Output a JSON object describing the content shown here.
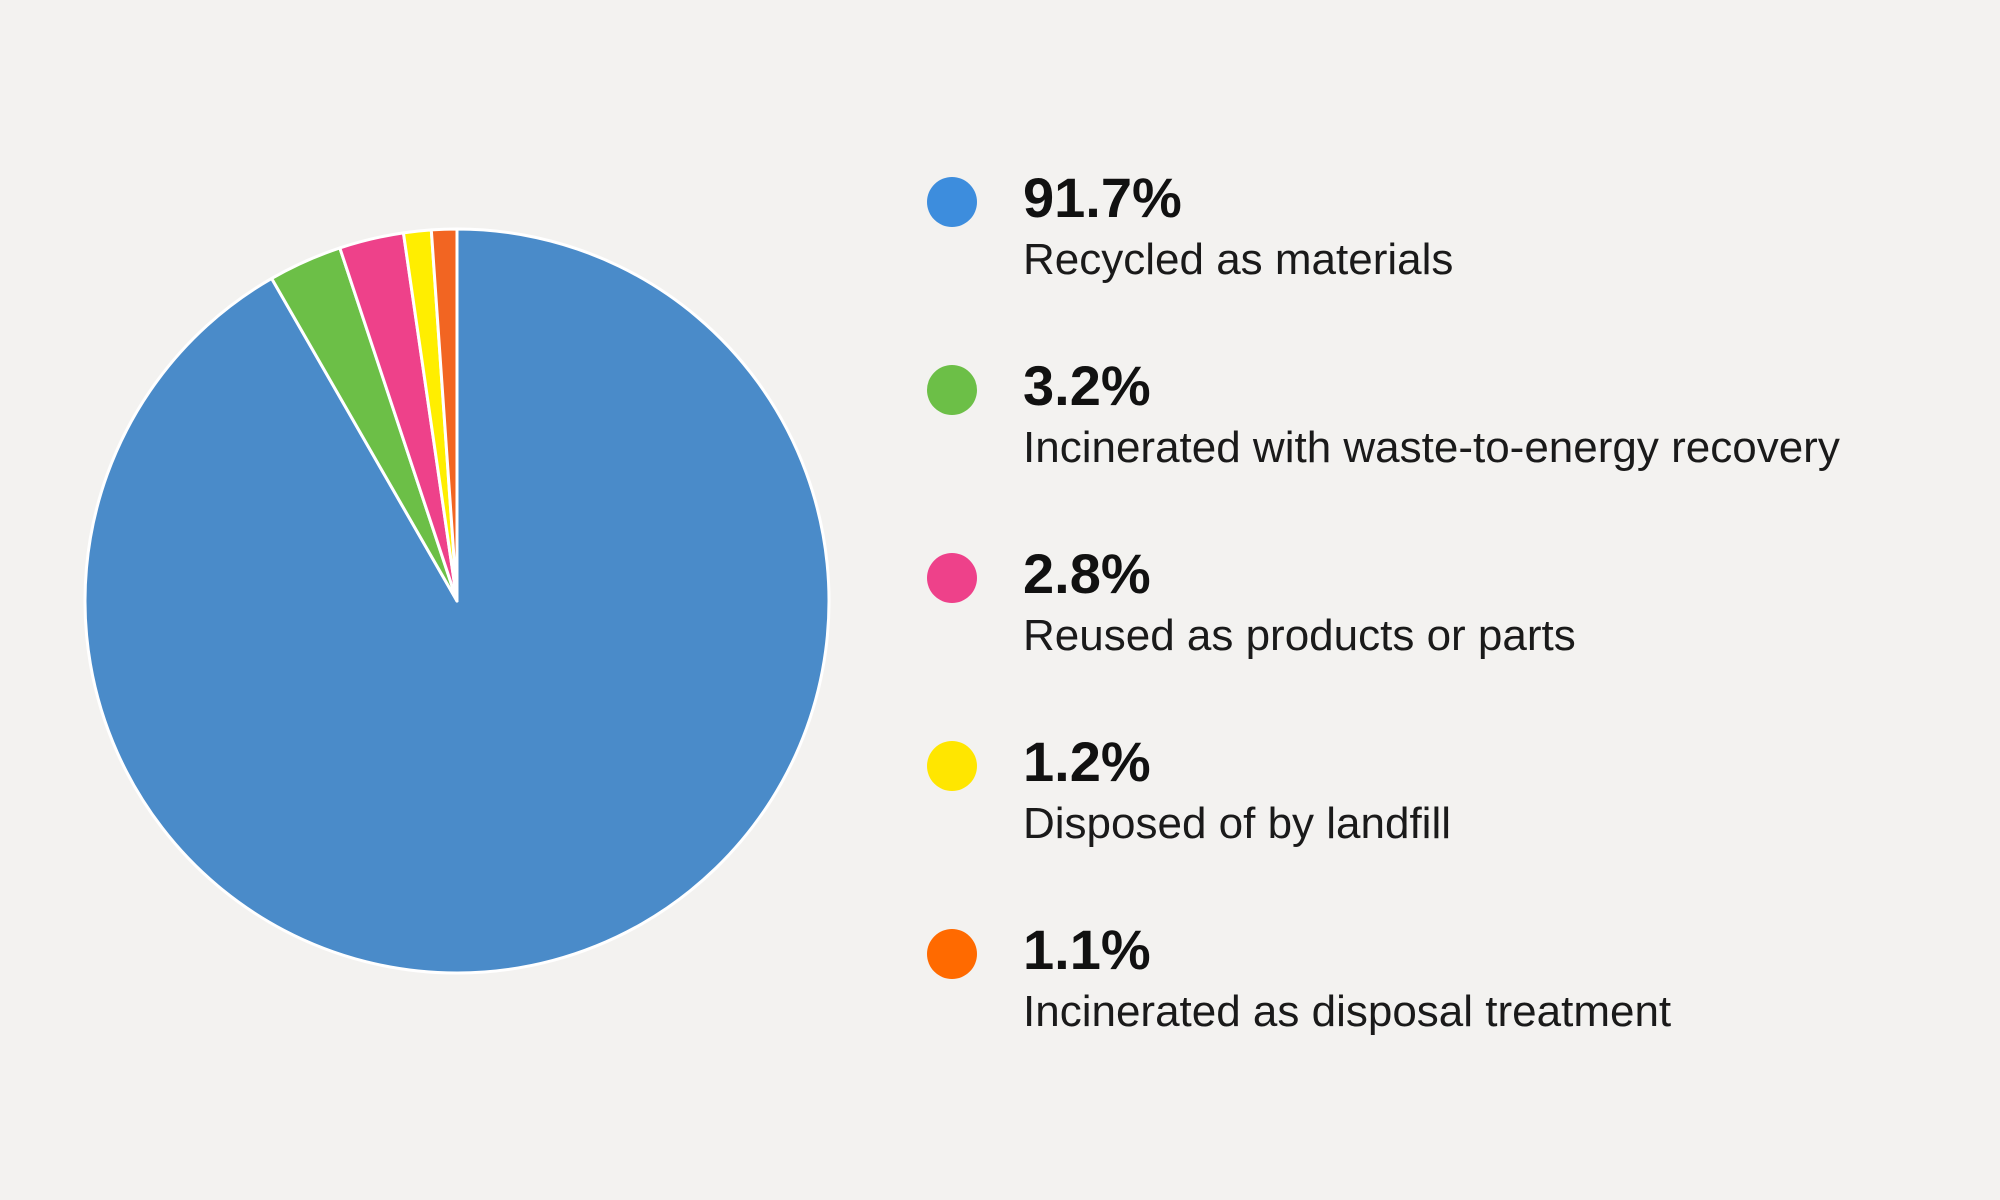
{
  "chart_data": {
    "type": "pie",
    "slices": [
      {
        "value": 91.7,
        "value_label": "91.7%",
        "label": "Recycled as materials",
        "color": "#4a8bc9",
        "legend_color": "#3d8ddd"
      },
      {
        "value": 3.2,
        "value_label": "3.2%",
        "label": "Incinerated with waste-to-energy recovery",
        "color": "#6cbf47",
        "legend_color": "#6cbf47"
      },
      {
        "value": 2.8,
        "value_label": "2.8%",
        "label": "Reused as products or parts",
        "color": "#ee418a",
        "legend_color": "#ee418a"
      },
      {
        "value": 1.2,
        "value_label": "1.2%",
        "label": "Disposed of by landfill",
        "color": "#ffee00",
        "legend_color": "#ffe600"
      },
      {
        "value": 1.1,
        "value_label": "1.1%",
        "label": "Incinerated as disposal treatment",
        "color": "#f26522",
        "legend_color": "#ff6a00"
      }
    ],
    "legend_position": "right",
    "slice_border_color": "#ffffff"
  }
}
